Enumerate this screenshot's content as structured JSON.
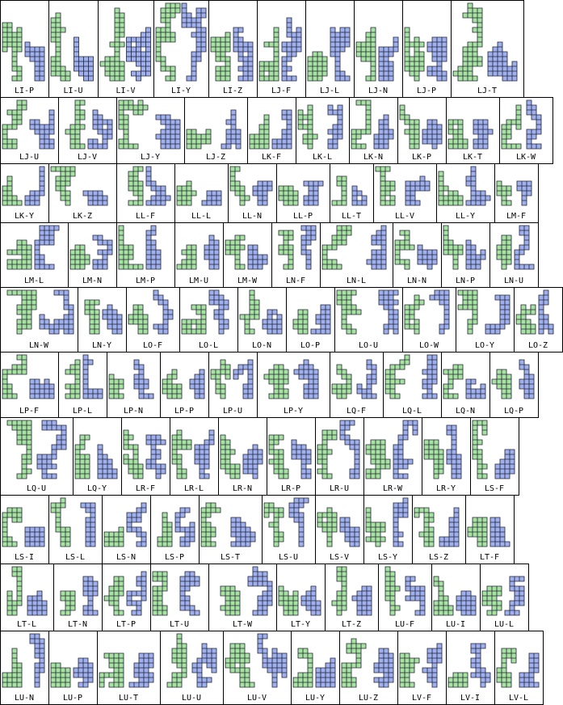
{
  "rows": [
    {
      "cells": [
        {
          "label": "LI-P"
        },
        {
          "label": "LI-U"
        },
        {
          "label": "LI-V"
        },
        {
          "label": "LI-Y"
        },
        {
          "label": "LI-Z"
        },
        {
          "label": "LJ-F"
        },
        {
          "label": "LJ-L"
        },
        {
          "label": "LJ-N"
        },
        {
          "label": "LJ-P"
        },
        {
          "label": "LJ-T"
        }
      ]
    },
    {
      "cells": [
        {
          "label": "LJ-U"
        },
        {
          "label": "LJ-V"
        },
        {
          "label": "LJ-Y"
        },
        {
          "label": "LJ-Z"
        },
        {
          "label": "LK-F"
        },
        {
          "label": "LK-L"
        },
        {
          "label": "LK-N"
        },
        {
          "label": "LK-P"
        },
        {
          "label": "LK-T"
        },
        {
          "label": "LK-W"
        }
      ]
    },
    {
      "cells": [
        {
          "label": "LK-Y"
        },
        {
          "label": "LK-Z"
        },
        {
          "label": "LL-F"
        },
        {
          "label": "LL-L"
        },
        {
          "label": "LL-N"
        },
        {
          "label": "LL-P"
        },
        {
          "label": "LL-T"
        },
        {
          "label": "LL-V"
        },
        {
          "label": "LL-Y"
        },
        {
          "label": "LM-F"
        }
      ]
    },
    {
      "cells": [
        {
          "label": "LM-L"
        },
        {
          "label": "LM-N"
        },
        {
          "label": "LM-P"
        },
        {
          "label": "LM-U"
        },
        {
          "label": "LM-W"
        },
        {
          "label": "LN-F"
        },
        {
          "label": "LN-L"
        },
        {
          "label": "LN-N"
        },
        {
          "label": "LN-P"
        },
        {
          "label": "LN-U"
        }
      ]
    },
    {
      "cells": [
        {
          "label": "LN-W"
        },
        {
          "label": "LN-Y"
        },
        {
          "label": "LO-F"
        },
        {
          "label": "LO-L"
        },
        {
          "label": "LO-N"
        },
        {
          "label": "LO-P"
        },
        {
          "label": "LO-U"
        },
        {
          "label": "LO-W"
        },
        {
          "label": "LO-Y"
        },
        {
          "label": "LO-Z"
        }
      ]
    },
    {
      "cells": [
        {
          "label": "LP-F"
        },
        {
          "label": "LP-L"
        },
        {
          "label": "LP-N"
        },
        {
          "label": "LP-P"
        },
        {
          "label": "LP-U"
        },
        {
          "label": "LP-Y"
        },
        {
          "label": "LQ-F"
        },
        {
          "label": "LQ-L"
        },
        {
          "label": "LQ-N"
        },
        {
          "label": "LQ-P"
        }
      ]
    },
    {
      "cells": [
        {
          "label": "LQ-U"
        },
        {
          "label": "LQ-Y"
        },
        {
          "label": "LR-F"
        },
        {
          "label": "LR-L"
        },
        {
          "label": "LR-N"
        },
        {
          "label": "LR-P"
        },
        {
          "label": "LR-U"
        },
        {
          "label": "LR-W"
        },
        {
          "label": "LR-Y"
        },
        {
          "label": "LS-F"
        }
      ]
    },
    {
      "cells": [
        {
          "label": "LS-I"
        },
        {
          "label": "LS-L"
        },
        {
          "label": "LS-N"
        },
        {
          "label": "LS-P"
        },
        {
          "label": "LS-T"
        },
        {
          "label": "LS-U"
        },
        {
          "label": "LS-V"
        },
        {
          "label": "LS-Y"
        },
        {
          "label": "LS-Z"
        },
        {
          "label": "LT-F"
        }
      ]
    },
    {
      "cells": [
        {
          "label": "LT-L"
        },
        {
          "label": "LT-N"
        },
        {
          "label": "LT-P"
        },
        {
          "label": "LT-U"
        },
        {
          "label": "LT-W"
        },
        {
          "label": "LT-Y"
        },
        {
          "label": "LT-Z"
        },
        {
          "label": "LU-F"
        },
        {
          "label": "LU-I"
        },
        {
          "label": "LU-L"
        }
      ]
    },
    {
      "cells": [
        {
          "label": "LU-N"
        },
        {
          "label": "LU-P"
        },
        {
          "label": "LU-T"
        },
        {
          "label": "LU-U"
        },
        {
          "label": "LU-V"
        },
        {
          "label": "LU-Y"
        },
        {
          "label": "LU-Z"
        },
        {
          "label": "LV-F"
        },
        {
          "label": "LV-I"
        },
        {
          "label": "LV-L"
        }
      ]
    }
  ]
}
